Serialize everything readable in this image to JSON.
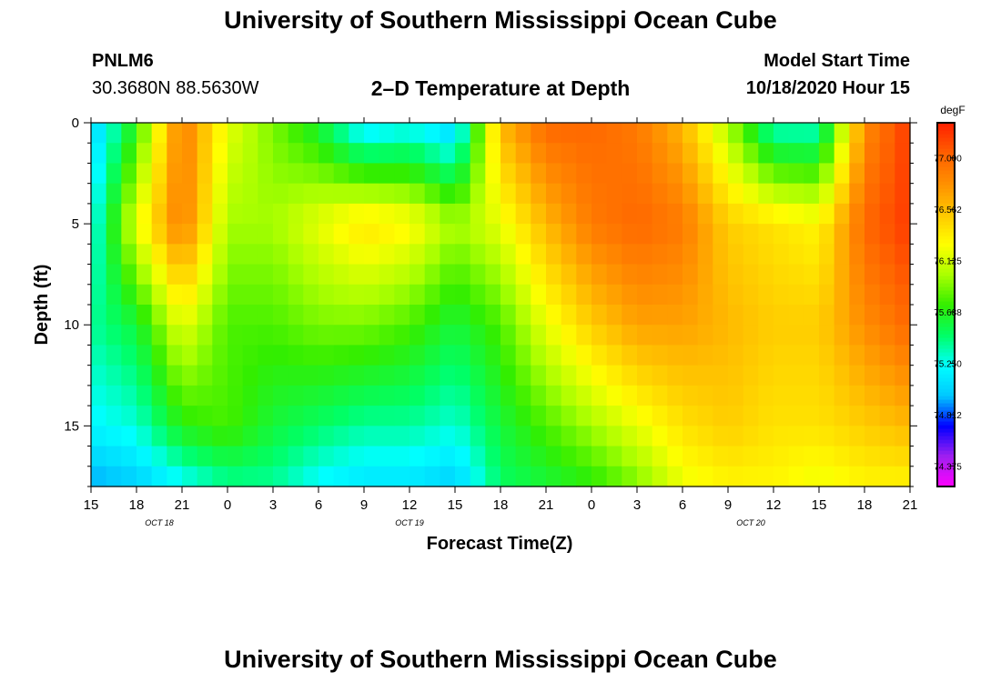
{
  "page": {
    "title": "University of Southern Mississippi Ocean Cube",
    "footer_title": "University of Southern Mississippi Ocean Cube",
    "station_id": "PNLM6",
    "station_coords": "30.3680N 88.5630W",
    "chart_heading": "2–D Temperature at Depth",
    "model_start_label": "Model Start Time",
    "model_start_value": "10/18/2020 Hour 15"
  },
  "chart_data": {
    "type": "heatmap",
    "title": "2–D Temperature at Depth",
    "xlabel": "Forecast Time(Z)",
    "ylabel": "Depth (ft)",
    "x_start": "2020-10-18T15:00Z",
    "x_end": "2020-10-20T21:00Z",
    "x_tick_labels": [
      "15",
      "18",
      "21",
      "0",
      "3",
      "6",
      "9",
      "12",
      "15",
      "18",
      "21",
      "0",
      "3",
      "6",
      "9",
      "12",
      "15",
      "18",
      "21"
    ],
    "date_labels": [
      {
        "text": "OCT 18",
        "at_tick": 1.5
      },
      {
        "text": "OCT 19",
        "at_tick": 7
      },
      {
        "text": "OCT 20",
        "at_tick": 14.5
      }
    ],
    "ylim": [
      0,
      18
    ],
    "y_ticks": [
      0,
      5,
      10,
      15
    ],
    "colorbar": {
      "unit": "degF",
      "vmin": 74.2,
      "vmax": 77.3,
      "tick_values": [
        77.0,
        76.562,
        76.125,
        75.688,
        75.25,
        74.812,
        74.375
      ],
      "tick_labels": [
        "77.000",
        "76.562",
        "76.125",
        "75.688",
        "75.250",
        "74.812",
        "74.375"
      ],
      "colors": [
        "#ff00ff",
        "#a020f0",
        "#0000ff",
        "#00c8ff",
        "#00ffff",
        "#00ff66",
        "#33ee00",
        "#aaff00",
        "#ffff00",
        "#ffc800",
        "#ff9000",
        "#ff6000",
        "#ff2000"
      ]
    },
    "depths_ft": [
      0,
      5,
      10,
      15,
      18
    ],
    "profile_times_h": [
      0,
      3,
      6,
      9,
      12,
      15,
      18,
      21,
      24,
      27,
      30,
      33,
      36,
      39,
      42,
      45,
      48,
      51,
      54
    ],
    "temperature_degF": [
      [
        75.0,
        75.2,
        75.4,
        75.2,
        74.9
      ],
      [
        75.7,
        76.2,
        75.6,
        75.3,
        75.0
      ],
      [
        76.9,
        76.9,
        76.2,
        75.7,
        75.2
      ],
      [
        76.2,
        76.0,
        75.8,
        75.8,
        75.4
      ],
      [
        75.9,
        76.0,
        75.8,
        75.6,
        75.4
      ],
      [
        75.6,
        76.2,
        75.9,
        75.5,
        75.2
      ],
      [
        75.1,
        76.4,
        75.9,
        75.4,
        75.1
      ],
      [
        75.2,
        76.3,
        75.8,
        75.4,
        75.1
      ],
      [
        75.0,
        76.0,
        75.6,
        75.3,
        75.0
      ],
      [
        76.6,
        76.2,
        75.8,
        75.6,
        75.5
      ],
      [
        77.0,
        76.6,
        76.2,
        75.8,
        75.6
      ],
      [
        77.0,
        76.9,
        76.5,
        76.0,
        75.7
      ],
      [
        76.9,
        77.0,
        76.7,
        76.2,
        75.9
      ],
      [
        76.6,
        76.9,
        76.7,
        76.4,
        76.2
      ],
      [
        76.0,
        76.5,
        76.6,
        76.5,
        76.3
      ],
      [
        75.3,
        76.4,
        76.5,
        76.4,
        76.3
      ],
      [
        75.3,
        76.3,
        76.5,
        76.4,
        76.2
      ],
      [
        76.8,
        77.0,
        76.8,
        76.5,
        76.3
      ],
      [
        77.2,
        77.2,
        77.0,
        76.6,
        76.3
      ]
    ]
  }
}
